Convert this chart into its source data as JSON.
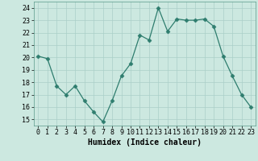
{
  "x": [
    0,
    1,
    2,
    3,
    4,
    5,
    6,
    7,
    8,
    9,
    10,
    11,
    12,
    13,
    14,
    15,
    16,
    17,
    18,
    19,
    20,
    21,
    22,
    23
  ],
  "y": [
    20.1,
    19.9,
    17.7,
    17.0,
    17.7,
    16.5,
    15.6,
    14.8,
    16.5,
    18.5,
    19.5,
    21.8,
    21.4,
    24.0,
    22.1,
    23.1,
    23.0,
    23.0,
    23.1,
    22.5,
    20.1,
    18.5,
    17.0,
    16.0
  ],
  "line_color": "#2e7d6e",
  "marker": "D",
  "marker_size": 2.5,
  "bg_color": "#cce8e0",
  "grid_color": "#aacfc8",
  "xlabel": "Humidex (Indice chaleur)",
  "xlim": [
    -0.5,
    23.5
  ],
  "ylim": [
    14.5,
    24.5
  ],
  "yticks": [
    15,
    16,
    17,
    18,
    19,
    20,
    21,
    22,
    23,
    24
  ],
  "xtick_labels": [
    "0",
    "1",
    "2",
    "3",
    "4",
    "5",
    "6",
    "7",
    "8",
    "9",
    "10",
    "11",
    "12",
    "13",
    "14",
    "15",
    "16",
    "17",
    "18",
    "19",
    "20",
    "21",
    "22",
    "23"
  ],
  "label_fontsize": 7,
  "tick_fontsize": 6
}
